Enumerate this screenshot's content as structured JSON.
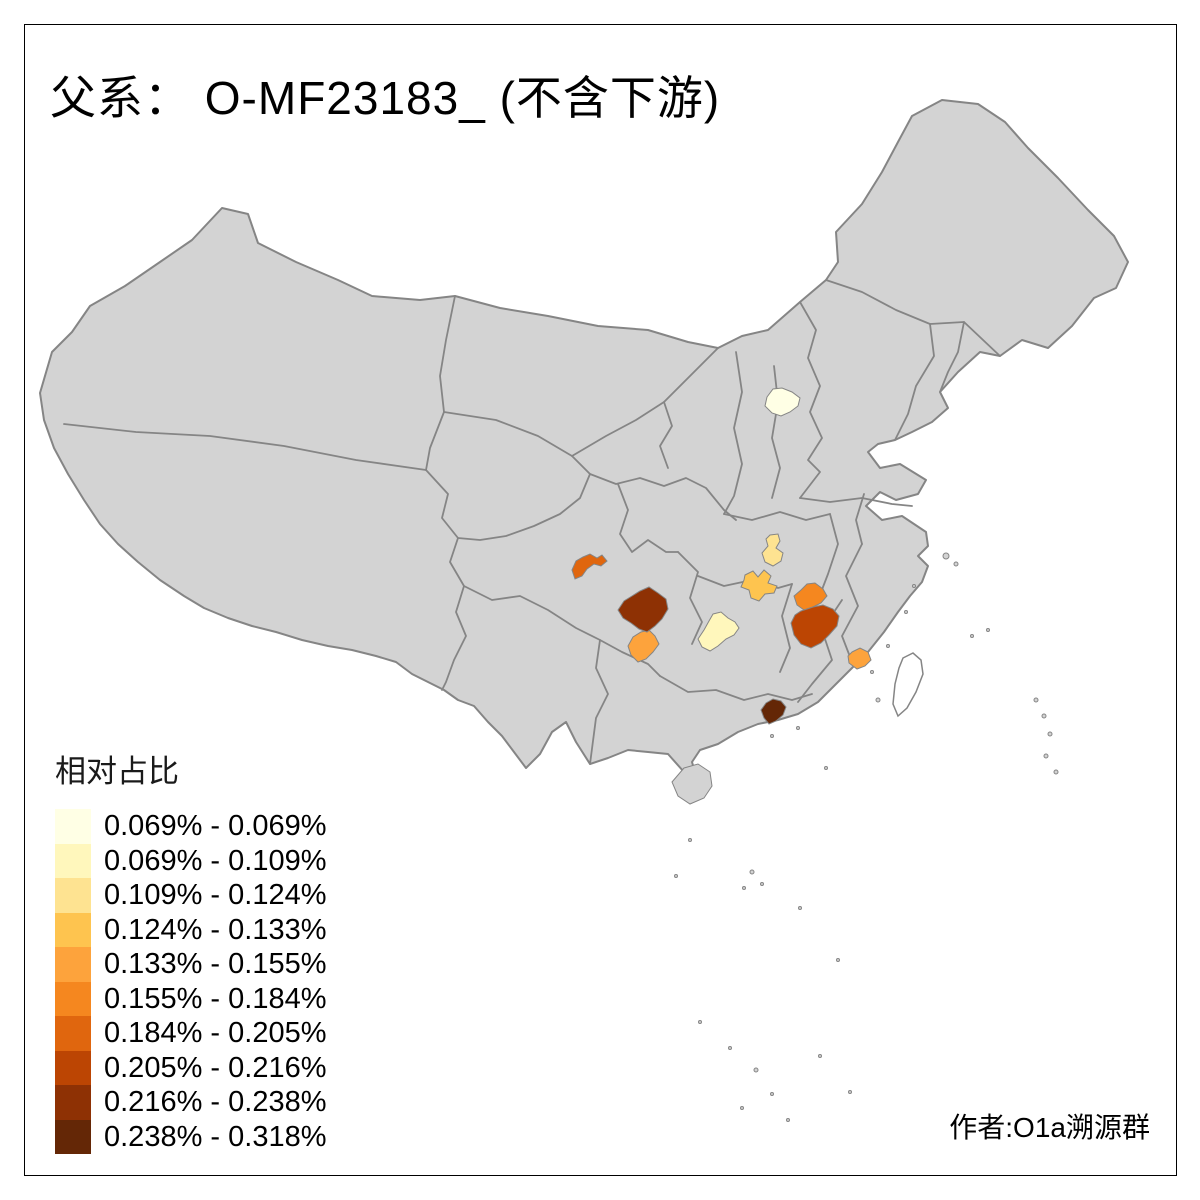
{
  "title": "父系： O-MF23183_ (不含下游)",
  "attribution": "作者:O1a溯源群",
  "legend": {
    "title": "相对占比",
    "items": [
      {
        "label": "0.069% - 0.069%",
        "color": "#FFFFE5"
      },
      {
        "label": "0.069% - 0.109%",
        "color": "#FFF7BC"
      },
      {
        "label": "0.109% - 0.124%",
        "color": "#FEE391"
      },
      {
        "label": "0.124% - 0.133%",
        "color": "#FEC44F"
      },
      {
        "label": "0.133% - 0.155%",
        "color": "#FDA33C"
      },
      {
        "label": "0.155% - 0.184%",
        "color": "#F5871F"
      },
      {
        "label": "0.184% - 0.205%",
        "color": "#E0660E"
      },
      {
        "label": "0.205% - 0.216%",
        "color": "#BC4503"
      },
      {
        "label": "0.216% - 0.238%",
        "color": "#8E3104"
      },
      {
        "label": "0.238% - 0.318%",
        "color": "#642706"
      }
    ]
  },
  "map": {
    "land_color": "#D3D3D3",
    "border_color": "#858585",
    "no_data_color": "#FFFFFF",
    "regions": [
      {
        "name": "hebei",
        "class_index": 0,
        "range": "0.069% - 0.069%",
        "color": "#FFFFE5"
      },
      {
        "name": "east-guizhou",
        "class_index": 1,
        "range": "0.069% - 0.109%",
        "color": "#FFF7BC"
      },
      {
        "name": "north-hubei",
        "class_index": 2,
        "range": "0.109% - 0.124%",
        "color": "#FEE391"
      },
      {
        "name": "jianghan",
        "class_index": 3,
        "range": "0.124% - 0.133%",
        "color": "#FEC44F"
      },
      {
        "name": "south-sichuan",
        "class_index": 4,
        "range": "0.133% - 0.155%",
        "color": "#FDA33C"
      },
      {
        "name": "coastal-fujian",
        "class_index": 4,
        "range": "0.133% - 0.155%",
        "color": "#FDA33C"
      },
      {
        "name": "north-jiangxi",
        "class_index": 5,
        "range": "0.155% - 0.184%",
        "color": "#F5871F"
      },
      {
        "name": "west-sichuan",
        "class_index": 6,
        "range": "0.184% - 0.205%",
        "color": "#E0660E"
      },
      {
        "name": "central-jiangxi",
        "class_index": 7,
        "range": "0.205% - 0.216%",
        "color": "#BC4503"
      },
      {
        "name": "central-sichuan",
        "class_index": 8,
        "range": "0.216% - 0.238%",
        "color": "#8E3104"
      },
      {
        "name": "pearl-delta",
        "class_index": 9,
        "range": "0.238% - 0.318%",
        "color": "#642706"
      }
    ]
  }
}
